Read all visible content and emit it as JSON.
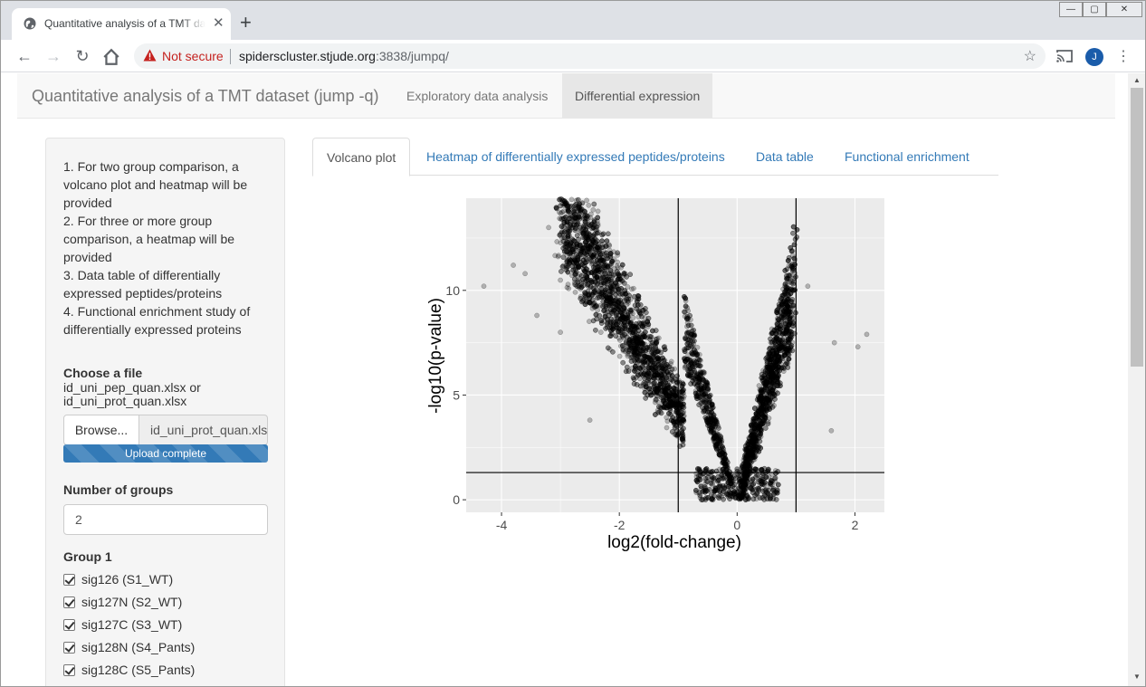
{
  "browser": {
    "tab_title": "Quantitative analysis of a TMT dataset (jump -q)",
    "not_secure": "Not secure",
    "url_host": "spiderscluster.stjude.org",
    "url_rest": ":3838/jumpq/",
    "avatar_letter": "J"
  },
  "app": {
    "brand": "Quantitative analysis of a TMT dataset (jump -q)",
    "nav": [
      "Exploratory data analysis",
      "Differential expression"
    ],
    "active_nav": "Differential expression"
  },
  "sidebar": {
    "instructions": [
      "1. For two group comparison, a volcano plot and heatmap will be provided",
      "2. For three or more group comparison, a heatmap will be provided",
      "3. Data table of differentially expressed peptides/proteins",
      "4. Functional enrichment study of differentially expressed proteins"
    ],
    "file_label": "Choose a file",
    "file_hint_1": "id_uni_pep_quan.xlsx or",
    "file_hint_2": "id_uni_prot_quan.xlsx",
    "browse": "Browse...",
    "file_name": "id_uni_prot_quan.xlsx",
    "upload_status": "Upload complete",
    "upload_progress": 100,
    "num_groups_label": "Number of groups",
    "num_groups_value": "2",
    "group1_label": "Group 1",
    "group1_items": [
      {
        "label": "sig126 (S1_WT)",
        "checked": true
      },
      {
        "label": "sig127N (S2_WT)",
        "checked": true
      },
      {
        "label": "sig127C (S3_WT)",
        "checked": true
      },
      {
        "label": "sig128N (S4_Pants)",
        "checked": true
      },
      {
        "label": "sig128C (S5_Pants)",
        "checked": true
      }
    ]
  },
  "tabs": [
    "Volcano plot",
    "Heatmap of differentially expressed peptides/proteins",
    "Data table",
    "Functional enrichment"
  ],
  "active_tab": "Volcano plot",
  "chart_data": {
    "type": "scatter",
    "xlabel": "log2(fold-change)",
    "ylabel": "-log10(p-value)",
    "xlim": [
      -4.6,
      2.5
    ],
    "ylim": [
      -0.6,
      14.4
    ],
    "xticks": [
      -4,
      -2,
      0,
      2
    ],
    "yticks": [
      0,
      5,
      10
    ],
    "vlines": [
      -1,
      1
    ],
    "hline": 1.3,
    "grid": true,
    "point_color": "#000000",
    "point_opacity": 0.25,
    "approx_point_count": 6000,
    "sample_points": [
      {
        "x": -4.3,
        "y": 10.2
      },
      {
        "x": -3.8,
        "y": 11.2
      },
      {
        "x": -3.6,
        "y": 10.8
      },
      {
        "x": -3.2,
        "y": 13.0
      },
      {
        "x": -2.7,
        "y": 14.0
      },
      {
        "x": -2.6,
        "y": 13.8
      },
      {
        "x": -3.4,
        "y": 8.8
      },
      {
        "x": -3.0,
        "y": 8.0
      },
      {
        "x": -2.5,
        "y": 3.8
      },
      {
        "x": 1.2,
        "y": 10.2
      },
      {
        "x": 1.65,
        "y": 7.5
      },
      {
        "x": 2.2,
        "y": 7.9
      },
      {
        "x": 2.05,
        "y": 7.3
      },
      {
        "x": 1.6,
        "y": 3.3
      },
      {
        "x": 0.75,
        "y": 9.6
      }
    ]
  }
}
